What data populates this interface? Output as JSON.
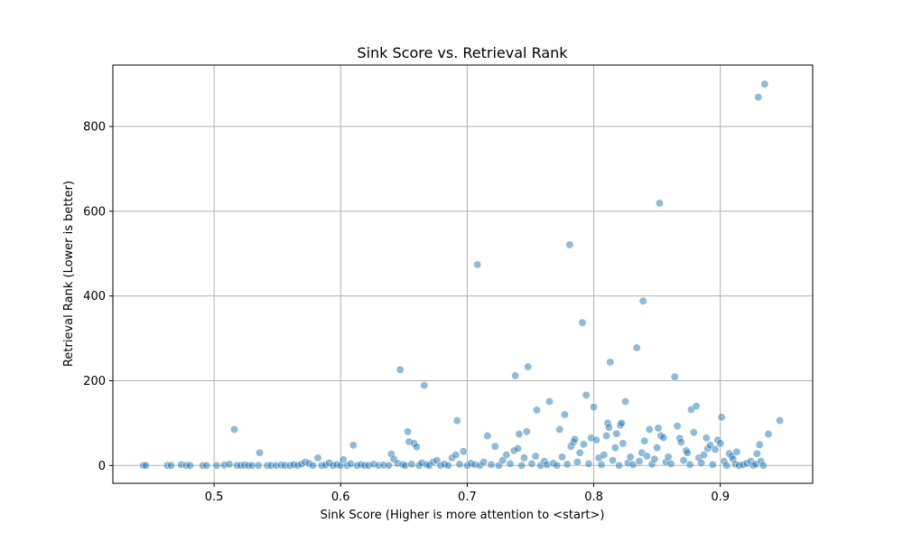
{
  "chart_data": {
    "type": "scatter",
    "title": "Sink Score vs. Retrieval Rank",
    "xlabel": "Sink Score (Higher is more attention to <start>)",
    "ylabel": "Retrieval Rank (Lower is better)",
    "xlim": [
      0.42,
      0.973
    ],
    "ylim": [
      -42,
      945
    ],
    "xticks": [
      0.5,
      0.6,
      0.7,
      0.8,
      0.9
    ],
    "xtick_labels": [
      "0.5",
      "0.6",
      "0.7",
      "0.8",
      "0.9"
    ],
    "yticks": [
      0,
      200,
      400,
      600,
      800
    ],
    "ytick_labels": [
      "0",
      "200",
      "400",
      "600",
      "800"
    ],
    "grid": true,
    "legend": "none",
    "marker_color": "#1f77b4",
    "marker_alpha": 0.5,
    "series": [
      {
        "points": [
          [
            0.444,
            0
          ],
          [
            0.446,
            0
          ],
          [
            0.463,
            0
          ],
          [
            0.466,
            0
          ],
          [
            0.474,
            2
          ],
          [
            0.478,
            0
          ],
          [
            0.481,
            0
          ],
          [
            0.491,
            0
          ],
          [
            0.494,
            0
          ],
          [
            0.502,
            0
          ],
          [
            0.508,
            1
          ],
          [
            0.512,
            3
          ],
          [
            0.516,
            85
          ],
          [
            0.518,
            0
          ],
          [
            0.521,
            0
          ],
          [
            0.524,
            1
          ],
          [
            0.527,
            0
          ],
          [
            0.53,
            0
          ],
          [
            0.535,
            0
          ],
          [
            0.536,
            30
          ],
          [
            0.542,
            0
          ],
          [
            0.545,
            0
          ],
          [
            0.549,
            0
          ],
          [
            0.553,
            1
          ],
          [
            0.556,
            0
          ],
          [
            0.56,
            0
          ],
          [
            0.563,
            2
          ],
          [
            0.566,
            0
          ],
          [
            0.569,
            3
          ],
          [
            0.572,
            8
          ],
          [
            0.575,
            5
          ],
          [
            0.578,
            0
          ],
          [
            0.582,
            18
          ],
          [
            0.585,
            0
          ],
          [
            0.588,
            1
          ],
          [
            0.591,
            6
          ],
          [
            0.594,
            0
          ],
          [
            0.597,
            2
          ],
          [
            0.6,
            0
          ],
          [
            0.602,
            14
          ],
          [
            0.605,
            0
          ],
          [
            0.608,
            4
          ],
          [
            0.61,
            48
          ],
          [
            0.613,
            0
          ],
          [
            0.616,
            2
          ],
          [
            0.619,
            0
          ],
          [
            0.622,
            0
          ],
          [
            0.626,
            3
          ],
          [
            0.63,
            0
          ],
          [
            0.634,
            1
          ],
          [
            0.638,
            0
          ],
          [
            0.64,
            27
          ],
          [
            0.642,
            15
          ],
          [
            0.645,
            5
          ],
          [
            0.647,
            226
          ],
          [
            0.649,
            2
          ],
          [
            0.651,
            0
          ],
          [
            0.653,
            80
          ],
          [
            0.654,
            56
          ],
          [
            0.656,
            3
          ],
          [
            0.658,
            52
          ],
          [
            0.66,
            44
          ],
          [
            0.662,
            0
          ],
          [
            0.664,
            6
          ],
          [
            0.666,
            189
          ],
          [
            0.668,
            2
          ],
          [
            0.67,
            0
          ],
          [
            0.673,
            8
          ],
          [
            0.676,
            12
          ],
          [
            0.679,
            0
          ],
          [
            0.682,
            3
          ],
          [
            0.685,
            0
          ],
          [
            0.688,
            18
          ],
          [
            0.691,
            25
          ],
          [
            0.692,
            106
          ],
          [
            0.694,
            3
          ],
          [
            0.697,
            33
          ],
          [
            0.7,
            0
          ],
          [
            0.703,
            5
          ],
          [
            0.706,
            2
          ],
          [
            0.708,
            474
          ],
          [
            0.71,
            0
          ],
          [
            0.713,
            8
          ],
          [
            0.716,
            70
          ],
          [
            0.719,
            2
          ],
          [
            0.722,
            45
          ],
          [
            0.725,
            0
          ],
          [
            0.728,
            12
          ],
          [
            0.731,
            25
          ],
          [
            0.734,
            4
          ],
          [
            0.737,
            35
          ],
          [
            0.738,
            212
          ],
          [
            0.74,
            40
          ],
          [
            0.741,
            74
          ],
          [
            0.743,
            0
          ],
          [
            0.745,
            18
          ],
          [
            0.747,
            80
          ],
          [
            0.748,
            233
          ],
          [
            0.751,
            4
          ],
          [
            0.754,
            22
          ],
          [
            0.755,
            131
          ],
          [
            0.758,
            0
          ],
          [
            0.761,
            10
          ],
          [
            0.763,
            2
          ],
          [
            0.765,
            151
          ],
          [
            0.768,
            5
          ],
          [
            0.771,
            0
          ],
          [
            0.773,
            85
          ],
          [
            0.775,
            20
          ],
          [
            0.777,
            120
          ],
          [
            0.779,
            3
          ],
          [
            0.781,
            521
          ],
          [
            0.782,
            45
          ],
          [
            0.784,
            55
          ],
          [
            0.785,
            62
          ],
          [
            0.787,
            8
          ],
          [
            0.789,
            30
          ],
          [
            0.791,
            337
          ],
          [
            0.792,
            50
          ],
          [
            0.794,
            166
          ],
          [
            0.796,
            4
          ],
          [
            0.798,
            65
          ],
          [
            0.8,
            138
          ],
          [
            0.802,
            60
          ],
          [
            0.804,
            18
          ],
          [
            0.806,
            2
          ],
          [
            0.808,
            25
          ],
          [
            0.81,
            70
          ],
          [
            0.811,
            100
          ],
          [
            0.812,
            90
          ],
          [
            0.813,
            244
          ],
          [
            0.815,
            12
          ],
          [
            0.817,
            42
          ],
          [
            0.818,
            75
          ],
          [
            0.82,
            0
          ],
          [
            0.821,
            95
          ],
          [
            0.822,
            100
          ],
          [
            0.823,
            52
          ],
          [
            0.825,
            151
          ],
          [
            0.827,
            6
          ],
          [
            0.829,
            20
          ],
          [
            0.831,
            2
          ],
          [
            0.834,
            278
          ],
          [
            0.836,
            10
          ],
          [
            0.838,
            30
          ],
          [
            0.839,
            388
          ],
          [
            0.84,
            58
          ],
          [
            0.842,
            22
          ],
          [
            0.844,
            85
          ],
          [
            0.846,
            3
          ],
          [
            0.848,
            15
          ],
          [
            0.85,
            42
          ],
          [
            0.851,
            88
          ],
          [
            0.852,
            619
          ],
          [
            0.853,
            70
          ],
          [
            0.855,
            66
          ],
          [
            0.857,
            8
          ],
          [
            0.859,
            20
          ],
          [
            0.861,
            4
          ],
          [
            0.864,
            209
          ],
          [
            0.866,
            93
          ],
          [
            0.868,
            64
          ],
          [
            0.869,
            55
          ],
          [
            0.871,
            12
          ],
          [
            0.873,
            35
          ],
          [
            0.874,
            30
          ],
          [
            0.876,
            2
          ],
          [
            0.877,
            132
          ],
          [
            0.879,
            78
          ],
          [
            0.881,
            140
          ],
          [
            0.883,
            18
          ],
          [
            0.885,
            6
          ],
          [
            0.887,
            25
          ],
          [
            0.889,
            65
          ],
          [
            0.89,
            40
          ],
          [
            0.892,
            48
          ],
          [
            0.894,
            2
          ],
          [
            0.896,
            38
          ],
          [
            0.898,
            60
          ],
          [
            0.9,
            52
          ],
          [
            0.901,
            114
          ],
          [
            0.903,
            10
          ],
          [
            0.905,
            0
          ],
          [
            0.907,
            28
          ],
          [
            0.909,
            22
          ],
          [
            0.91,
            15
          ],
          [
            0.912,
            3
          ],
          [
            0.913,
            32
          ],
          [
            0.915,
            0
          ],
          [
            0.918,
            2
          ],
          [
            0.921,
            5
          ],
          [
            0.924,
            10
          ],
          [
            0.926,
            0
          ],
          [
            0.928,
            3
          ],
          [
            0.929,
            28
          ],
          [
            0.93,
            869
          ],
          [
            0.931,
            49
          ],
          [
            0.932,
            10
          ],
          [
            0.934,
            0
          ],
          [
            0.935,
            900
          ],
          [
            0.938,
            74
          ],
          [
            0.947,
            106
          ]
        ]
      }
    ]
  }
}
